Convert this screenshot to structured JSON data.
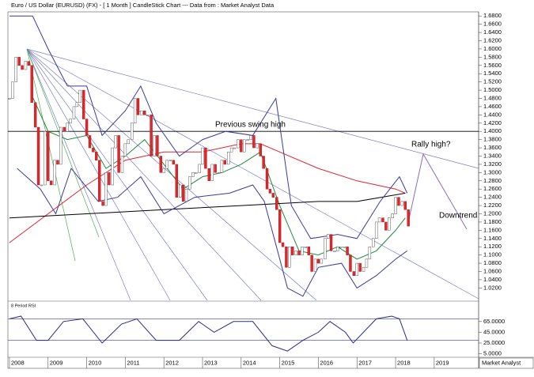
{
  "chart_data": [
    {
      "type": "candlestick",
      "title": "Euro / US Dollar (EURUSD) (FX) -  [ 1 Month ] CandleStick Chart --- Data from : Market Analyst Data",
      "up_color": "#ffffff",
      "down_color": "#e0262b",
      "x": [
        2008,
        2008.08,
        2008.17,
        2008.25,
        2008.33,
        2008.42,
        2008.5,
        2008.58,
        2008.67,
        2008.75,
        2008.83,
        2008.92,
        2009,
        2009.08,
        2009.17,
        2009.25,
        2009.33,
        2009.42,
        2009.5,
        2009.58,
        2009.67,
        2009.75,
        2009.83,
        2009.92,
        2010,
        2010.08,
        2010.17,
        2010.25,
        2010.33,
        2010.42,
        2010.5,
        2010.58,
        2010.67,
        2010.75,
        2010.83,
        2010.92,
        2011,
        2011.08,
        2011.17,
        2011.25,
        2011.33,
        2011.42,
        2011.5,
        2011.58,
        2011.67,
        2011.75,
        2011.83,
        2011.92,
        2012,
        2012.08,
        2012.17,
        2012.25,
        2012.33,
        2012.42,
        2012.5,
        2012.58,
        2012.67,
        2012.75,
        2012.83,
        2012.92,
        2013,
        2013.08,
        2013.17,
        2013.25,
        2013.33,
        2013.42,
        2013.5,
        2013.58,
        2013.67,
        2013.75,
        2013.83,
        2013.92,
        2014,
        2014.08,
        2014.17,
        2014.25,
        2014.33,
        2014.42,
        2014.5,
        2014.58,
        2014.67,
        2014.75,
        2014.83,
        2014.92,
        2015,
        2015.08,
        2015.17,
        2015.25,
        2015.33,
        2015.42,
        2015.5,
        2015.58,
        2015.67,
        2015.75,
        2015.83,
        2015.92,
        2016,
        2016.08,
        2016.17,
        2016.25,
        2016.33,
        2016.42,
        2016.5,
        2016.58,
        2016.67,
        2016.75,
        2016.83,
        2016.92,
        2017,
        2017.08,
        2017.17,
        2017.25,
        2017.33,
        2017.42,
        2017.5,
        2017.58,
        2017.67,
        2017.75,
        2017.83,
        2017.92,
        2018,
        2018.08,
        2018.17,
        2018.25,
        2018.33
      ],
      "closes": [
        1.48,
        1.52,
        1.58,
        1.56,
        1.55,
        1.57,
        1.56,
        1.47,
        1.41,
        1.27,
        1.27,
        1.4,
        1.28,
        1.27,
        1.33,
        1.32,
        1.41,
        1.4,
        1.42,
        1.43,
        1.46,
        1.47,
        1.5,
        1.43,
        1.39,
        1.36,
        1.35,
        1.33,
        1.23,
        1.22,
        1.3,
        1.27,
        1.36,
        1.39,
        1.3,
        1.34,
        1.37,
        1.38,
        1.42,
        1.48,
        1.44,
        1.45,
        1.44,
        1.44,
        1.34,
        1.39,
        1.34,
        1.3,
        1.31,
        1.33,
        1.33,
        1.32,
        1.24,
        1.27,
        1.23,
        1.26,
        1.29,
        1.3,
        1.3,
        1.32,
        1.36,
        1.31,
        1.28,
        1.32,
        1.3,
        1.3,
        1.33,
        1.32,
        1.35,
        1.36,
        1.36,
        1.38,
        1.35,
        1.38,
        1.38,
        1.39,
        1.36,
        1.37,
        1.34,
        1.31,
        1.26,
        1.25,
        1.24,
        1.21,
        1.13,
        1.12,
        1.07,
        1.12,
        1.1,
        1.11,
        1.1,
        1.12,
        1.12,
        1.1,
        1.06,
        1.09,
        1.08,
        1.09,
        1.14,
        1.15,
        1.11,
        1.11,
        1.12,
        1.12,
        1.12,
        1.1,
        1.06,
        1.05,
        1.08,
        1.06,
        1.07,
        1.09,
        1.12,
        1.14,
        1.18,
        1.19,
        1.18,
        1.16,
        1.19,
        1.2,
        1.24,
        1.22,
        1.23,
        1.21,
        1.17
      ],
      "overlays": [
        {
          "color": "#1f8a3a",
          "x": [
            2008.57,
            2009,
            2009.5,
            2010,
            2010.5,
            2011,
            2011.5,
            2012,
            2012.5,
            2013,
            2013.5,
            2014,
            2014.5,
            2015,
            2015.5,
            2016,
            2016.5,
            2017,
            2017.5,
            2018,
            2018.25
          ],
          "values": [
            1.49,
            1.4,
            1.38,
            1.39,
            1.31,
            1.34,
            1.38,
            1.32,
            1.26,
            1.29,
            1.3,
            1.32,
            1.35,
            1.22,
            1.11,
            1.1,
            1.12,
            1.09,
            1.11,
            1.16,
            1.19
          ]
        },
        {
          "color": "#e0262b",
          "x": [
            2008,
            2010,
            2011,
            2012,
            2013,
            2014,
            2014.5,
            2015,
            2016,
            2017,
            2018,
            2018.25
          ],
          "values": [
            1.13,
            1.27,
            1.33,
            1.35,
            1.35,
            1.37,
            1.37,
            1.35,
            1.31,
            1.28,
            1.26,
            1.25
          ]
        },
        {
          "color": "#000000",
          "x": [
            2008,
            2010,
            2012,
            2014,
            2016,
            2017,
            2018.25
          ],
          "values": [
            1.19,
            1.2,
            1.21,
            1.22,
            1.23,
            1.23,
            1.25
          ]
        },
        {
          "color": "#3a3a9a",
          "x": [
            2008,
            2008.6,
            2009,
            2009.5,
            2010,
            2010.4,
            2011,
            2011.4,
            2011.8,
            2012.4,
            2013,
            2013.6,
            2014.3,
            2014.9,
            2015.3,
            2015.8,
            2016.5,
            2017,
            2017.6,
            2018.1,
            2018.3
          ],
          "values": [
            1.68,
            1.68,
            1.6,
            1.51,
            1.51,
            1.39,
            1.45,
            1.51,
            1.42,
            1.34,
            1.38,
            1.4,
            1.39,
            1.48,
            1.22,
            1.14,
            1.15,
            1.14,
            1.23,
            1.29,
            1.25
          ]
        },
        {
          "color": "#3a3a9a",
          "x": [
            2008.2,
            2008.8,
            2009.2,
            2009.6,
            2010.3,
            2010.8,
            2011.4,
            2012,
            2012.8,
            2013.7,
            2014.3,
            2014.6,
            2015.2,
            2015.6,
            2016,
            2016.6,
            2017,
            2017.5,
            2018,
            2018.3
          ],
          "values": [
            1.31,
            1.26,
            1.2,
            1.31,
            1.23,
            1.24,
            1.29,
            1.2,
            1.24,
            1.25,
            1.27,
            1.23,
            1.02,
            1.0,
            1.07,
            1.08,
            1.02,
            1.05,
            1.09,
            1.11
          ]
        }
      ],
      "hlines": [
        1.4
      ],
      "annotations": [
        "Previous swing high",
        "Rally high?",
        "Downtrend"
      ],
      "xlim": [
        2007.96,
        2020.15
      ],
      "xticks": [
        2008,
        2009,
        2010,
        2011,
        2012,
        2013,
        2014,
        2015,
        2016,
        2017,
        2018,
        2019
      ],
      "ylim": [
        0.99,
        1.69
      ],
      "yticks": [
        {
          "value": 1.02,
          "label": "1.0200"
        },
        {
          "value": 1.04,
          "label": "1.0400"
        },
        {
          "value": 1.06,
          "label": "1.0600"
        },
        {
          "value": 1.08,
          "label": "1.0800"
        },
        {
          "value": 1.1,
          "label": "1.1000"
        },
        {
          "value": 1.12,
          "label": "1.1200"
        },
        {
          "value": 1.14,
          "label": "1.1400"
        },
        {
          "value": 1.16,
          "label": "1.1600"
        },
        {
          "value": 1.18,
          "label": "1.1800"
        },
        {
          "value": 1.2,
          "label": "1.2000"
        },
        {
          "value": 1.22,
          "label": "1.2200"
        },
        {
          "value": 1.24,
          "label": "1.2400"
        },
        {
          "value": 1.26,
          "label": "1.2600"
        },
        {
          "value": 1.28,
          "label": "1.2800"
        },
        {
          "value": 1.3,
          "label": "1.3000"
        },
        {
          "value": 1.32,
          "label": "1.3200"
        },
        {
          "value": 1.34,
          "label": "1.3400"
        },
        {
          "value": 1.36,
          "label": "1.3600"
        },
        {
          "value": 1.38,
          "label": "1.3800"
        },
        {
          "value": 1.4,
          "label": "1.4000"
        },
        {
          "value": 1.42,
          "label": "1.4200"
        },
        {
          "value": 1.44,
          "label": "1.4400"
        },
        {
          "value": 1.46,
          "label": "1.4600"
        },
        {
          "value": 1.48,
          "label": "1.4800"
        },
        {
          "value": 1.5,
          "label": "1.5000"
        },
        {
          "value": 1.52,
          "label": "1.5200"
        },
        {
          "value": 1.54,
          "label": "1.5400"
        },
        {
          "value": 1.56,
          "label": "1.5600"
        },
        {
          "value": 1.58,
          "label": "1.5800"
        },
        {
          "value": 1.6,
          "label": "1.6000"
        },
        {
          "value": 1.62,
          "label": "1.6200"
        },
        {
          "value": 1.64,
          "label": "1.6400"
        },
        {
          "value": 1.66,
          "label": "1.6600"
        },
        {
          "value": 1.68,
          "label": "1.6800"
        }
      ]
    },
    {
      "type": "line",
      "title": "8 Period RSI",
      "color": "#2a2a8a",
      "x": [
        2008,
        2008.3,
        2008.7,
        2009,
        2009.4,
        2009.9,
        2010.4,
        2010.9,
        2011.3,
        2011.8,
        2012.4,
        2012.9,
        2013.3,
        2013.8,
        2014.3,
        2014.8,
        2015.2,
        2015.6,
        2016,
        2016.3,
        2016.7,
        2016.9,
        2017.5,
        2017.9,
        2018.1,
        2018.3
      ],
      "values": [
        70,
        75,
        30,
        30,
        65,
        70,
        25,
        60,
        70,
        30,
        30,
        65,
        45,
        65,
        65,
        20,
        10,
        30,
        45,
        65,
        45,
        25,
        70,
        75,
        70,
        30
      ],
      "hlines": [
        70,
        30
      ],
      "xlim": [
        2007.96,
        2020.15
      ],
      "ylim": [
        0,
        100
      ],
      "yticks": [
        {
          "value": 5,
          "label": "5.0000"
        },
        {
          "value": 25,
          "label": "25.0000"
        },
        {
          "value": 45,
          "label": "45.0000"
        },
        {
          "value": 65,
          "label": "65.0000"
        }
      ]
    }
  ],
  "footer": "Market Analyst"
}
